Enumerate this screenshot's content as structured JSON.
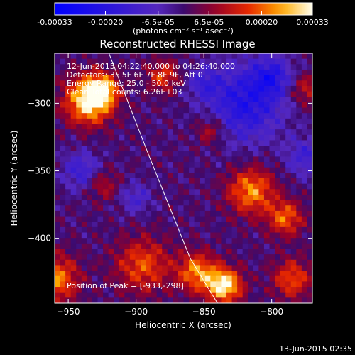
{
  "chart_data": {
    "type": "heatmap",
    "title": "Reconstructed RHESSI Image",
    "xlabel": "Heliocentric X (arcsec)",
    "ylabel": "Heliocentric Y (arcsec)",
    "xlim": [
      -960,
      -770
    ],
    "ylim": [
      -448,
      -263
    ],
    "x_ticks": [
      "-950",
      "-900",
      "-850",
      "-800"
    ],
    "x_tick_values": [
      -950,
      -900,
      -850,
      -800
    ],
    "y_ticks": [
      "-300",
      "-350",
      "-400"
    ],
    "y_tick_values": [
      -300,
      -350,
      -400
    ],
    "colorbar": {
      "tick_labels": [
        "-0.00033",
        "-0.00020",
        "-6.5e-05",
        "6.5e-05",
        "0.00020",
        "0.00033"
      ],
      "tick_values": [
        -0.00033,
        -0.0002,
        -6.5e-05,
        6.5e-05,
        0.0002,
        0.00033
      ],
      "range": [
        -0.00033,
        0.00033
      ],
      "units_label": "(photons cm⁻² s⁻¹ asec⁻²)"
    },
    "info_lines": [
      "12-Jun-2015 04:22:40.000 to 04:26:40.000",
      "Detectors: 3F 5F 6F 7F 8F 9F, Att 0",
      "Energy Range: 25.0 - 50.0 keV",
      "Clean     Total counts: 6.26E+03"
    ],
    "peak_label": "Position of Peak = [-933,-298]",
    "peak": {
      "x": -933,
      "y": -298
    },
    "limb_line": [
      [
        -920,
        -263
      ],
      [
        -890,
        -340
      ],
      [
        -860,
        -415
      ],
      [
        -840,
        -448
      ]
    ],
    "hot_spots": [
      {
        "x": -935,
        "y": -298,
        "sigma": 12,
        "amp": 1.0
      },
      {
        "x": -925,
        "y": -290,
        "sigma": 8,
        "amp": 0.7
      },
      {
        "x": -835,
        "y": -435,
        "sigma": 9,
        "amp": 1.0
      },
      {
        "x": -855,
        "y": -425,
        "sigma": 10,
        "amp": 0.7
      },
      {
        "x": -815,
        "y": -365,
        "sigma": 12,
        "amp": 0.7
      },
      {
        "x": -790,
        "y": -385,
        "sigma": 9,
        "amp": 0.6
      },
      {
        "x": -960,
        "y": -430,
        "sigma": 12,
        "amp": 0.7
      },
      {
        "x": -895,
        "y": -420,
        "sigma": 14,
        "amp": 0.55
      },
      {
        "x": -880,
        "y": -280,
        "sigma": 8,
        "amp": 0.5
      },
      {
        "x": -845,
        "y": -320,
        "sigma": 8,
        "amp": 0.4
      },
      {
        "x": -785,
        "y": -430,
        "sigma": 10,
        "amp": 0.55
      },
      {
        "x": -925,
        "y": -360,
        "sigma": 8,
        "amp": 0.35
      },
      {
        "x": -775,
        "y": -290,
        "sigma": 8,
        "amp": 0.4
      }
    ],
    "cold_spots": [
      {
        "x": -820,
        "y": -300,
        "sigma": 20,
        "amp": -0.65
      },
      {
        "x": -800,
        "y": -280,
        "sigma": 10,
        "amp": -0.5
      },
      {
        "x": -940,
        "y": -350,
        "sigma": 10,
        "amp": -0.45
      },
      {
        "x": -900,
        "y": -370,
        "sigma": 8,
        "amp": -0.35
      },
      {
        "x": -850,
        "y": -285,
        "sigma": 8,
        "amp": -0.35
      },
      {
        "x": -775,
        "y": -340,
        "sigma": 10,
        "amp": -0.4
      }
    ],
    "grid": false
  },
  "footer": {
    "timestamp": "13-Jun-2015 02:35"
  }
}
